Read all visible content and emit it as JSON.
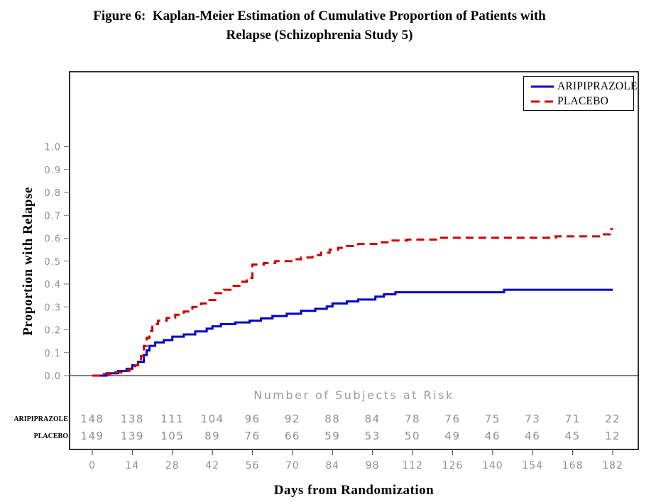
{
  "figure": {
    "title_line1": "Figure 6:  Kaplan-Meier Estimation of Cumulative Proportion of Patients with",
    "title_line2": "Relapse (Schizophrenia Study 5)"
  },
  "chart_data": {
    "type": "line",
    "subtype": "kaplan-meier-step",
    "title": "Figure 6: Kaplan-Meier Estimation of Cumulative Proportion of Patients with Relapse (Schizophrenia Study 5)",
    "xlabel": "Days from Randomization",
    "ylabel": "Proportion  with  Relapse",
    "xlim": [
      0,
      182
    ],
    "ylim": [
      0.0,
      1.0
    ],
    "x_ticks": [
      0,
      14,
      28,
      42,
      56,
      70,
      84,
      98,
      112,
      126,
      140,
      154,
      168,
      182
    ],
    "y_ticks": [
      0.0,
      0.1,
      0.2,
      0.3,
      0.4,
      0.5,
      0.6,
      0.7,
      0.8,
      0.9,
      1.0
    ],
    "grid": false,
    "legend_position": "top-right-inside",
    "end_day": 182,
    "series": [
      {
        "name": "ARIPIPRAZOLE",
        "color": "#0000C8",
        "line_style": "solid",
        "steps": [
          [
            0,
            0
          ],
          [
            5,
            0.01
          ],
          [
            9,
            0.02
          ],
          [
            12,
            0.03
          ],
          [
            14,
            0.045
          ],
          [
            16,
            0.06
          ],
          [
            18,
            0.09
          ],
          [
            19,
            0.11
          ],
          [
            20,
            0.13
          ],
          [
            22,
            0.145
          ],
          [
            25,
            0.155
          ],
          [
            28,
            0.17
          ],
          [
            32,
            0.18
          ],
          [
            36,
            0.193
          ],
          [
            40,
            0.205
          ],
          [
            42,
            0.215
          ],
          [
            45,
            0.225
          ],
          [
            50,
            0.232
          ],
          [
            55,
            0.24
          ],
          [
            59,
            0.25
          ],
          [
            63,
            0.26
          ],
          [
            68,
            0.27
          ],
          [
            73,
            0.283
          ],
          [
            78,
            0.292
          ],
          [
            82,
            0.302
          ],
          [
            84,
            0.315
          ],
          [
            89,
            0.324
          ],
          [
            93,
            0.332
          ],
          [
            99,
            0.345
          ],
          [
            102,
            0.355
          ],
          [
            106,
            0.364
          ],
          [
            144,
            0.375
          ]
        ]
      },
      {
        "name": "PLACEBO",
        "color": "#CC0000",
        "line_style": "dashed",
        "steps": [
          [
            0,
            0
          ],
          [
            4,
            0.007
          ],
          [
            8,
            0.014
          ],
          [
            11,
            0.021
          ],
          [
            13,
            0.03
          ],
          [
            15,
            0.045
          ],
          [
            16,
            0.065
          ],
          [
            17,
            0.085
          ],
          [
            18,
            0.13
          ],
          [
            19,
            0.165
          ],
          [
            20,
            0.195
          ],
          [
            21,
            0.225
          ],
          [
            23,
            0.24
          ],
          [
            26,
            0.252
          ],
          [
            29,
            0.266
          ],
          [
            32,
            0.28
          ],
          [
            35,
            0.3
          ],
          [
            38,
            0.315
          ],
          [
            41,
            0.33
          ],
          [
            43,
            0.36
          ],
          [
            46,
            0.375
          ],
          [
            49,
            0.392
          ],
          [
            52,
            0.41
          ],
          [
            54,
            0.426
          ],
          [
            56,
            0.485
          ],
          [
            60,
            0.492
          ],
          [
            64,
            0.5
          ],
          [
            70,
            0.508
          ],
          [
            73,
            0.516
          ],
          [
            77,
            0.526
          ],
          [
            80,
            0.537
          ],
          [
            83,
            0.55
          ],
          [
            86,
            0.558
          ],
          [
            89,
            0.566
          ],
          [
            93,
            0.575
          ],
          [
            100,
            0.582
          ],
          [
            105,
            0.59
          ],
          [
            110,
            0.594
          ],
          [
            122,
            0.602
          ],
          [
            162,
            0.608
          ],
          [
            178,
            0.617
          ],
          [
            181,
            0.64
          ]
        ]
      }
    ],
    "at_risk": {
      "heading": "Number of Subjects at Risk",
      "days": [
        0,
        14,
        28,
        42,
        56,
        70,
        84,
        98,
        112,
        126,
        140,
        154,
        168,
        182
      ],
      "rows": [
        {
          "label": "ARIPIPRAZOLE",
          "counts": [
            148,
            138,
            111,
            104,
            96,
            92,
            88,
            84,
            78,
            76,
            75,
            73,
            71,
            22
          ]
        },
        {
          "label": "PLACEBO",
          "counts": [
            149,
            139,
            105,
            89,
            76,
            66,
            59,
            53,
            50,
            49,
            46,
            46,
            45,
            12
          ]
        }
      ]
    },
    "colors": {
      "axis": "#000000",
      "tick_text": "#8e8e8e",
      "heading_text": "#9b9b9b"
    }
  }
}
